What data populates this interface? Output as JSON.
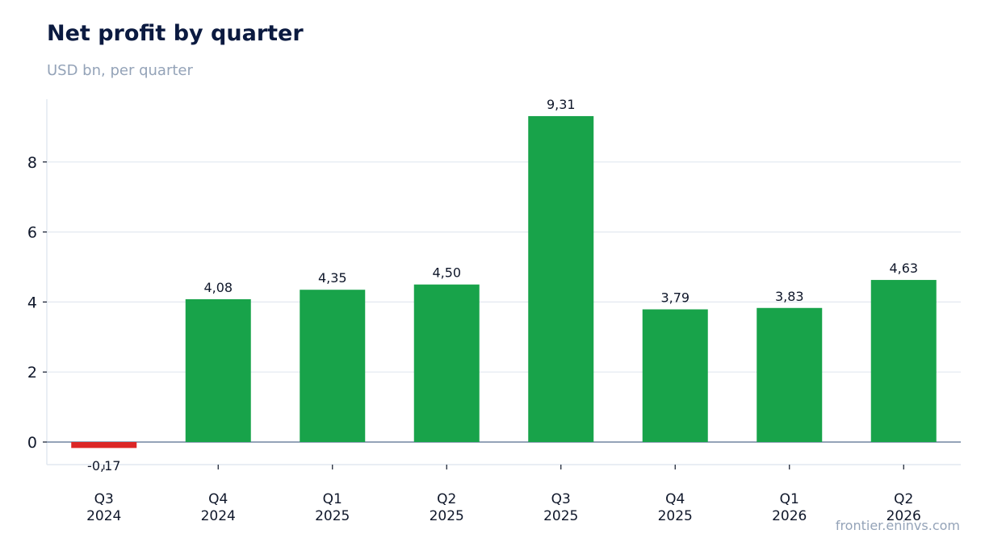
{
  "header": {
    "title": "Net profit by quarter",
    "subtitle": "USD bn, per quarter"
  },
  "footer": {
    "source": "frontier.eninvs.com"
  },
  "colors": {
    "positive": "#18a34a",
    "negative": "#dc2626",
    "grid": "#e2e8f0",
    "baseline": "#94a3b8",
    "text": "#0f172a"
  },
  "chart_data": {
    "type": "bar",
    "title": "Net profit by quarter",
    "subtitle": "USD bn, per quarter",
    "xlabel": "",
    "ylabel": "",
    "categories": [
      [
        "Q3",
        "2024"
      ],
      [
        "Q4",
        "2024"
      ],
      [
        "Q1",
        "2025"
      ],
      [
        "Q2",
        "2025"
      ],
      [
        "Q3",
        "2025"
      ],
      [
        "Q4",
        "2025"
      ],
      [
        "Q1",
        "2026"
      ],
      [
        "Q2",
        "2026"
      ]
    ],
    "values": [
      -0.17,
      4.08,
      4.35,
      4.5,
      9.31,
      3.79,
      3.83,
      4.63
    ],
    "value_labels": [
      "-0,17",
      "4,08",
      "4,35",
      "4,50",
      "9,31",
      "3,79",
      "3,83",
      "4,63"
    ],
    "ylim": [
      -0.65,
      9.8
    ],
    "yticks": [
      0,
      2,
      4,
      6,
      8
    ],
    "grid": true,
    "legend": false
  }
}
